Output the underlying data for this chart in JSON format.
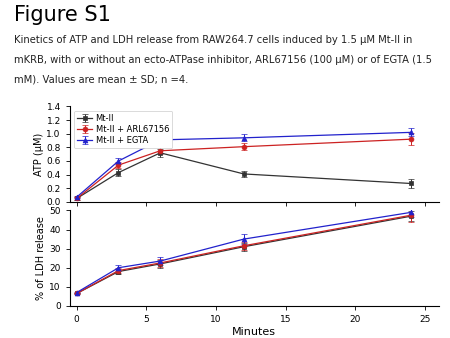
{
  "title": "Figure S1",
  "caption_line1": "Kinetics of ATP and LDH release from RAW264.7 cells induced by 1.5 μM Mt-II in",
  "caption_line2": "mKRB, with or without an ecto-ATPase inhibitor, ARL67156 (100 μM) or of EGTA (1.5",
  "caption_line3": "mM). Values are mean ± SD; n =4.",
  "x": [
    0,
    3,
    6,
    12,
    24
  ],
  "atp": {
    "MtII": [
      0.05,
      0.43,
      0.72,
      0.41,
      0.27
    ],
    "MtII_ARL": [
      0.05,
      0.54,
      0.75,
      0.81,
      0.92
    ],
    "MtII_EGTA": [
      0.07,
      0.6,
      0.91,
      0.94,
      1.02
    ]
  },
  "atp_err": {
    "MtII": [
      0.02,
      0.05,
      0.06,
      0.04,
      0.06
    ],
    "MtII_ARL": [
      0.02,
      0.05,
      0.05,
      0.05,
      0.09
    ],
    "MtII_EGTA": [
      0.02,
      0.04,
      0.05,
      0.05,
      0.06
    ]
  },
  "ldh": {
    "MtII": [
      6.5,
      18.0,
      22.0,
      31.0,
      47.0
    ],
    "MtII_ARL": [
      6.5,
      18.5,
      22.5,
      31.5,
      47.5
    ],
    "MtII_EGTA": [
      7.0,
      20.0,
      23.5,
      35.0,
      49.0
    ]
  },
  "ldh_err": {
    "MtII": [
      0.5,
      1.5,
      2.0,
      2.0,
      2.5
    ],
    "MtII_ARL": [
      0.5,
      1.5,
      2.0,
      2.0,
      3.5
    ],
    "MtII_EGTA": [
      0.5,
      1.5,
      2.0,
      2.5,
      2.5
    ]
  },
  "colors": {
    "MtII": "#333333",
    "MtII_ARL": "#cc2222",
    "MtII_EGTA": "#2222cc"
  },
  "legend_labels": [
    "Mt-II",
    "Mt-II + ARL67156",
    "Mt-II + EGTA"
  ],
  "atp_ylabel": "ATP (μM)",
  "ldh_ylabel": "% of LDH release",
  "xlabel": "Minutes",
  "atp_ylim": [
    0.0,
    1.4
  ],
  "ldh_ylim": [
    0,
    50
  ],
  "atp_yticks": [
    0.0,
    0.2,
    0.4,
    0.6,
    0.8,
    1.0,
    1.2,
    1.4
  ],
  "ldh_yticks": [
    0,
    10,
    20,
    30,
    40,
    50
  ],
  "xticks": [
    0,
    5,
    10,
    15,
    20,
    25
  ],
  "background_color": "#ffffff"
}
